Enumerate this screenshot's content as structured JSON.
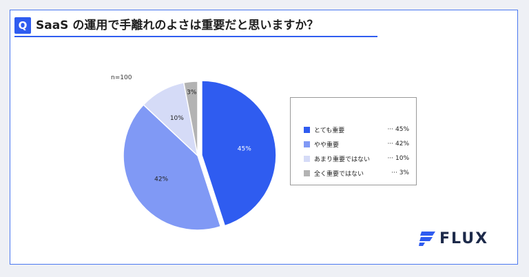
{
  "question": {
    "badge": "Q",
    "text": "SaaS の運用で手離れのよさは重要だと思いますか？"
  },
  "sample_label": "n=100",
  "legend": [
    {
      "label": "とても重要",
      "value": "··· 45%",
      "color": "#2f5cf0"
    },
    {
      "label": "やや重要",
      "value": "··· 42%",
      "color": "#8099f5"
    },
    {
      "label": "あまり重要ではない",
      "value": "··· 10%",
      "color": "#d5dbf7"
    },
    {
      "label": "全く重要ではない",
      "value": "···   3%",
      "color": "#b3b3b3"
    }
  ],
  "logo": {
    "word": "FLUX",
    "color": "#2f5cf0"
  },
  "chart_data": {
    "type": "pie",
    "title": "SaaS の運用で手離れのよさは重要だと思いますか？",
    "categories": [
      "とても重要",
      "やや重要",
      "あまり重要ではない",
      "全く重要ではない"
    ],
    "values": [
      45,
      42,
      10,
      3
    ],
    "labels": [
      "45%",
      "42%",
      "10%",
      "3%"
    ],
    "colors": [
      "#2f5cf0",
      "#8099f5",
      "#d5dbf7",
      "#b3b3b3"
    ],
    "n": 100,
    "legend_position": "right"
  }
}
